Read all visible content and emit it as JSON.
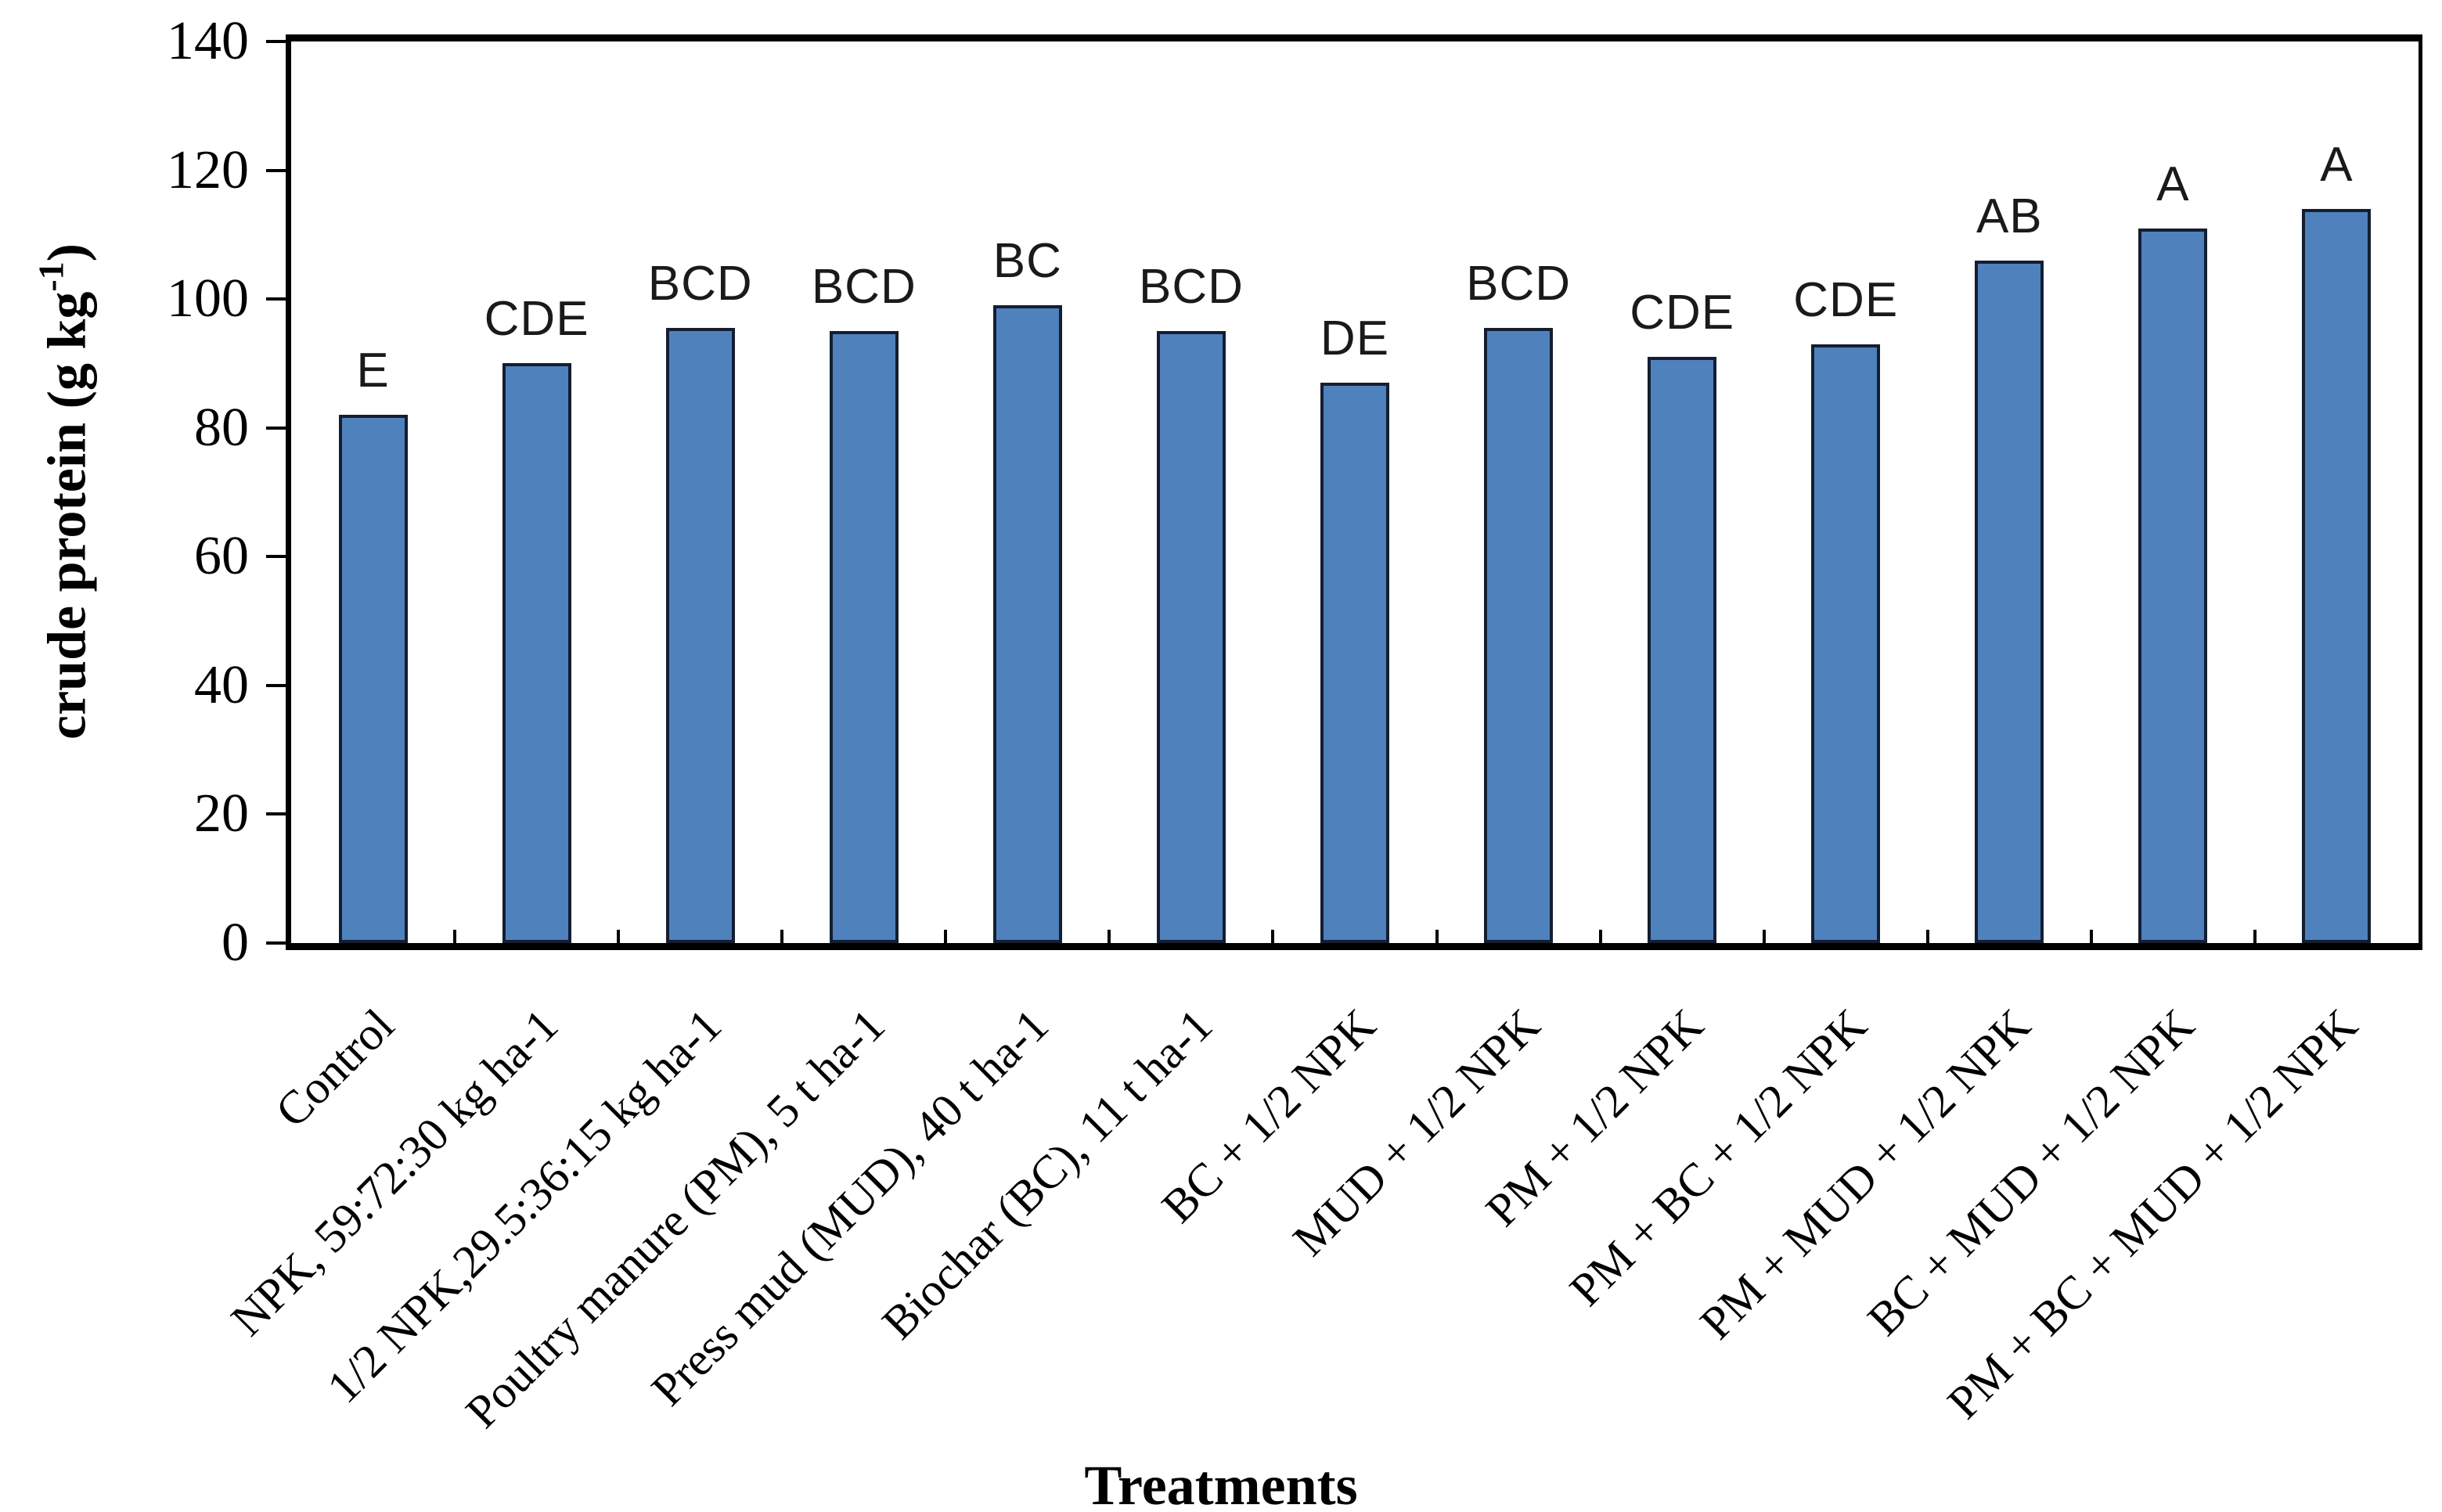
{
  "chart_data": {
    "type": "bar",
    "title": "",
    "xlabel": "Treatments",
    "ylabel": "crude protein (g kg-1)",
    "ylabel_parts": {
      "main": "crude protein (g kg",
      "sup": "-1",
      "close": ")"
    },
    "ylim": [
      0,
      140
    ],
    "yticks": [
      0,
      20,
      40,
      60,
      80,
      100,
      120,
      140
    ],
    "grid": false,
    "legend": false,
    "bar_color": "#4F81BD",
    "bar_border_color": "#141E30",
    "categories": [
      "Control",
      "NPK, 59:72:30 kg ha-1",
      "1/2 NPK,29.5:36:15 kg ha-1",
      "Poultry manure (PM), 5 t ha-1",
      "Press mud (MUD), 40 t ha-1",
      "Biochar (BC), 11 t ha-1",
      "BC + 1/2 NPK",
      "MUD + 1/2 NPK",
      "PM + 1/2 NPK",
      "PM + BC + 1/2 NPK",
      "PM + MUD + 1/2 NPK",
      "BC + MUD + 1/2 NPK",
      "PM + BC + MUD + 1/2 NPK"
    ],
    "values": [
      82,
      90,
      95.5,
      95,
      99,
      95,
      87,
      95.5,
      91,
      93,
      106,
      111,
      114
    ],
    "significance_letters": [
      "E",
      "CDE",
      "BCD",
      "BCD",
      "BC",
      "BCD",
      "DE",
      "BCD",
      "CDE",
      "CDE",
      "AB",
      "A",
      "A"
    ]
  }
}
